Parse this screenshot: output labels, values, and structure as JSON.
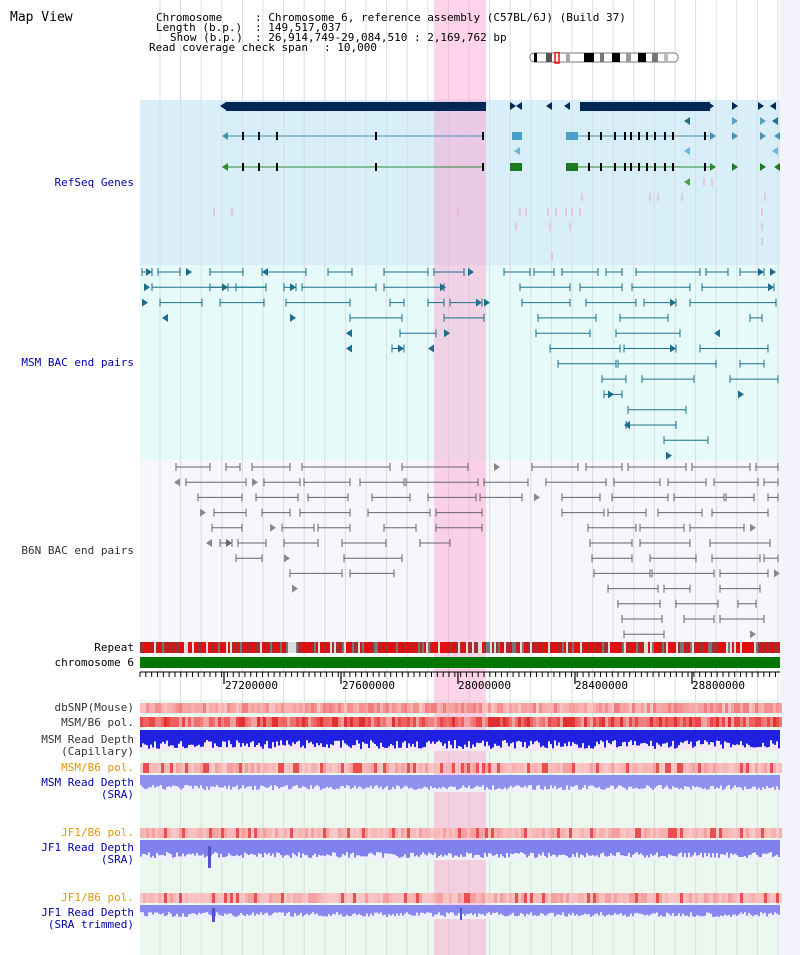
{
  "page": {
    "title": "Map View"
  },
  "info": {
    "chromosome_key": "Chromosome",
    "chromosome_value": "Chromosome 6, reference assembly (C57BL/6J) (Build 37)",
    "length_key": "Length (b.p.)",
    "length_value": "149,517,037",
    "show_key": "Show (b.p.)",
    "show_value": "26,914,749-29,084,510 : 2,169,762 bp",
    "coverage_key": "Read coverage check span",
    "coverage_value": "10,000"
  },
  "tracks": {
    "refseq": "RefSeq Genes",
    "msm_bac": "MSM BAC end pairs",
    "b6n_bac": "B6N BAC end pairs",
    "repeat": "Repeat",
    "chromosome": "chromosome 6",
    "dbsnp": "dbSNP(Mouse)",
    "msm_pol_1": "MSM/B6 pol.",
    "msm_depth_cap_1": "MSM Read Depth",
    "msm_depth_cap_2": "(Capillary)",
    "msm_pol_2": "MSM/B6 pol.",
    "msm_depth_sra_1": "MSM Read Depth",
    "msm_depth_sra_2": "(SRA)",
    "jf1_pol_1": "JF1/B6 pol.",
    "jf1_depth_sra_1": "JF1 Read Depth",
    "jf1_depth_sra_2": "(SRA)",
    "jf1_pol_2": "JF1/B6 pol.",
    "jf1_depth_trim_1": "JF1 Read Depth",
    "jf1_depth_trim_2": "(SRA trimmed)"
  },
  "scale_ticks": [
    "27200000",
    "27600000",
    "28000000",
    "28400000",
    "28800000"
  ],
  "colors": {
    "track_label_blue": "#0000aa",
    "track_label_orange": "#e69500",
    "highlight": "#ff99cc",
    "refseq_bg": "#d8eef8",
    "chromosome_bar": "#007700"
  }
}
